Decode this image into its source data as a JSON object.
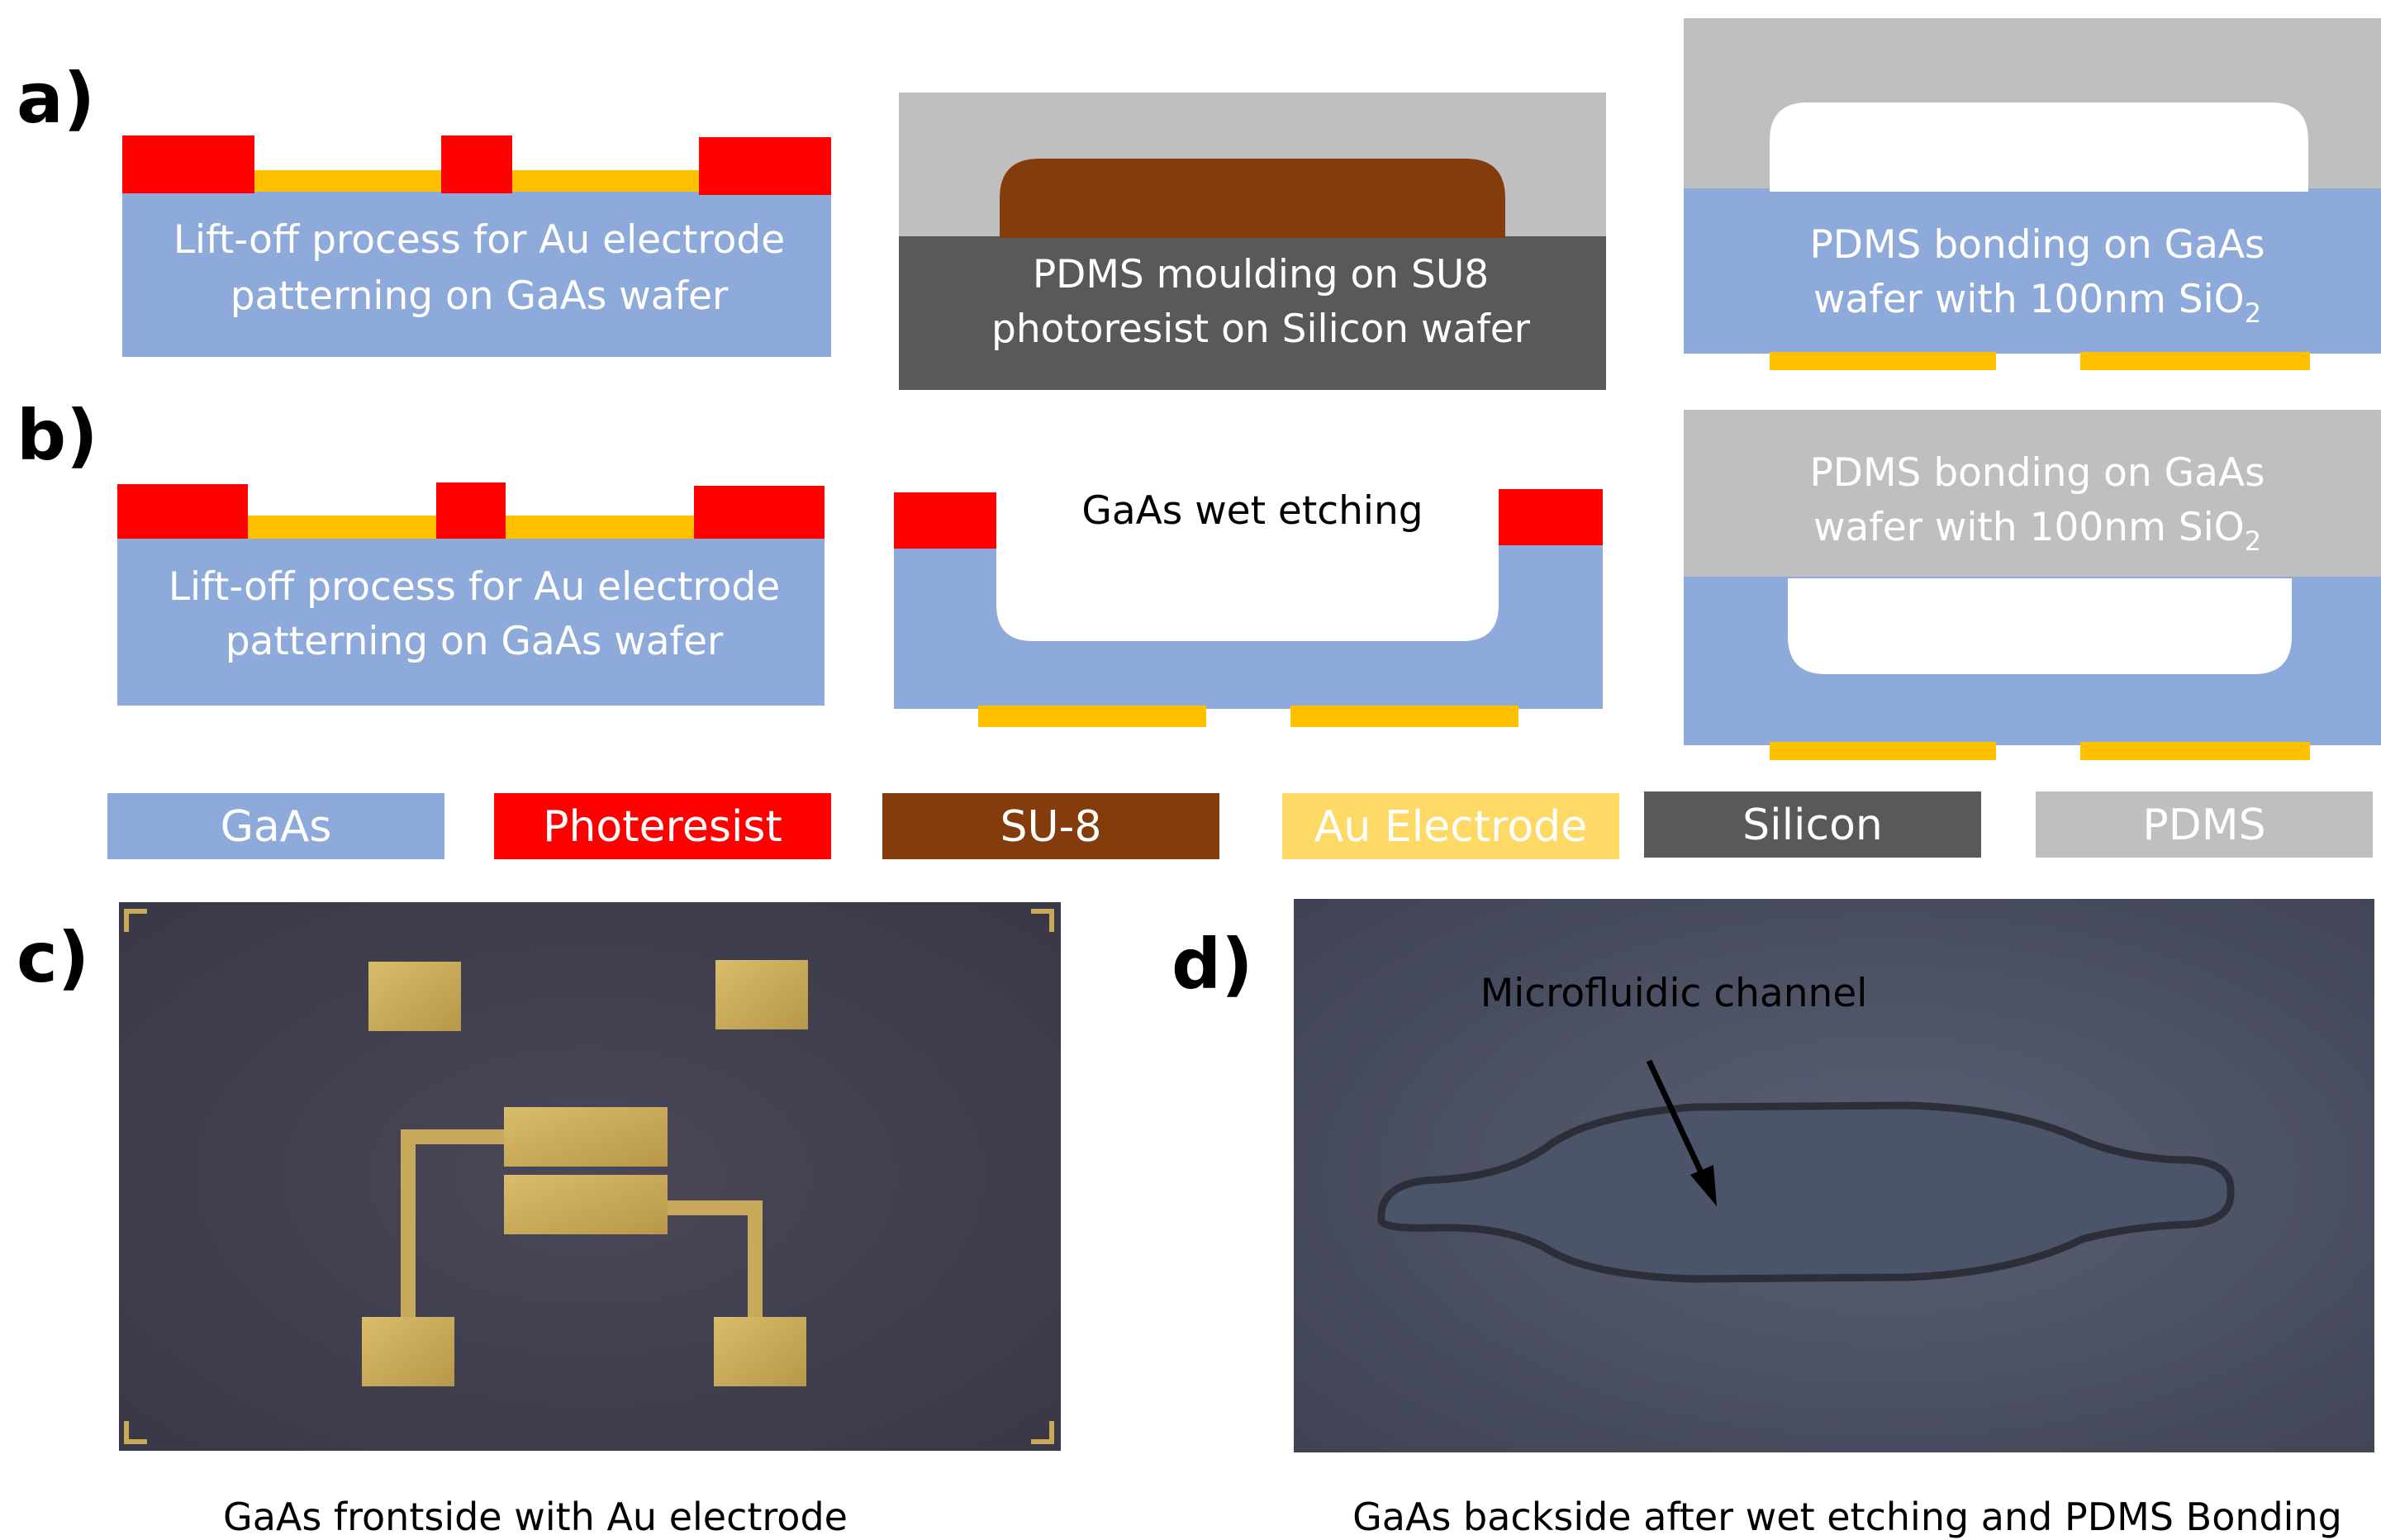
{
  "panels": {
    "a": {
      "label": "a)",
      "step1_text": [
        "Lift-off process for Au electrode",
        "patterning on GaAs wafer"
      ],
      "step2_text": [
        "PDMS moulding on SU8",
        "photoresist on Silicon wafer"
      ],
      "step3_line1": "PDMS bonding on GaAs",
      "step3_line2_prefix": "wafer with 100nm SiO",
      "step3_line2_sub": "2"
    },
    "b": {
      "label": "b)",
      "step1_text": [
        "Lift-off process for Au electrode",
        "patterning on GaAs wafer"
      ],
      "step2_text": "GaAs wet etching",
      "step3_line1": "PDMS bonding on GaAs",
      "step3_line2_prefix": "wafer with 100nm SiO",
      "step3_line2_sub": "2"
    },
    "c": {
      "label": "c)",
      "caption": "GaAs frontside with Au electrode"
    },
    "d": {
      "label": "d)",
      "annotation": "Microfluidic channel",
      "caption": "GaAs backside after wet etching and PDMS Bonding"
    }
  },
  "legend": [
    {
      "label": "GaAs",
      "color": "#8eaadb"
    },
    {
      "label": "Photeresist",
      "color": "#ff0000"
    },
    {
      "label": "SU-8",
      "color": "#843c0c"
    },
    {
      "label": "Au Electrode",
      "color": "#ffd966"
    },
    {
      "label": "Silicon",
      "color": "#595959"
    },
    {
      "label": "PDMS",
      "color": "#bfbfbf"
    }
  ],
  "colors": {
    "gaas": "#8eaadb",
    "photoresist": "#ff0000",
    "su8": "#843c0c",
    "au": "#ffc000",
    "silicon": "#595959",
    "pdms": "#bfbfbf",
    "photo_background": "#42404f",
    "photo_pad": "#c8a85a"
  }
}
